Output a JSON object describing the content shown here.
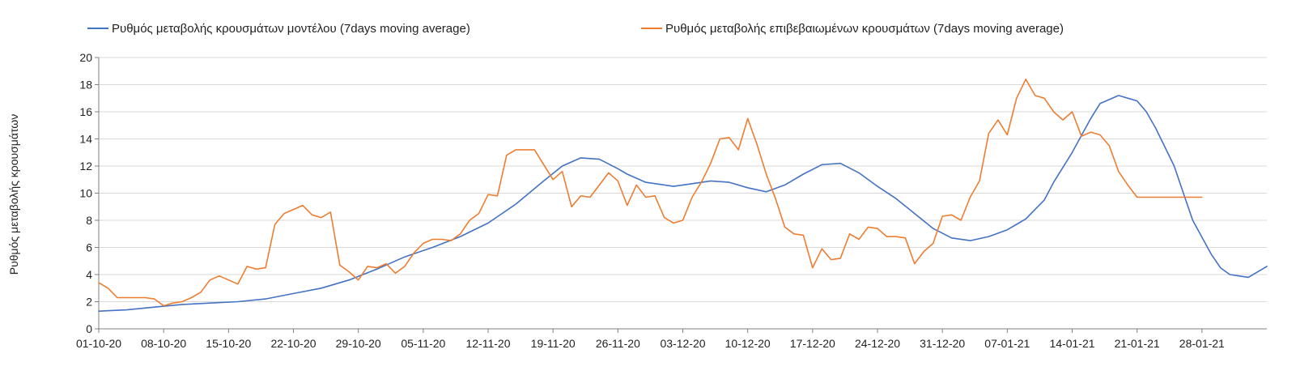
{
  "chart_data": {
    "type": "line",
    "title": "",
    "xlabel": "",
    "ylabel": "Ρυθμός μεταβολής κρουσμάτων",
    "ylim": [
      0,
      20
    ],
    "yticks": [
      0,
      2,
      4,
      6,
      8,
      10,
      12,
      14,
      16,
      18,
      20
    ],
    "grid": "horizontal",
    "legend_position": "top",
    "x_start_day": 0,
    "x_end_day": 126,
    "x_tick_labels": [
      "01-10-20",
      "08-10-20",
      "15-10-20",
      "22-10-20",
      "29-10-20",
      "05-11-20",
      "12-11-20",
      "19-11-20",
      "26-11-20",
      "03-12-20",
      "10-12-20",
      "17-12-20",
      "24-12-20",
      "31-12-20",
      "07-01-21",
      "14-01-21",
      "21-01-21",
      "28-01-21"
    ],
    "series": [
      {
        "name": "Ρυθμός μεταβολής κρουσμάτων μοντέλου (7days moving average)",
        "color": "#4472c4",
        "x": [
          0,
          3,
          6,
          9,
          12,
          15,
          18,
          21,
          24,
          27,
          30,
          33,
          36,
          39,
          42,
          45,
          48,
          50,
          52,
          54,
          56,
          57,
          59,
          62,
          64,
          66,
          68,
          70,
          72,
          74,
          76,
          78,
          80,
          82,
          84,
          86,
          88,
          90,
          92,
          94,
          96,
          98,
          99,
          100,
          102,
          103,
          105,
          107,
          108,
          110,
          112,
          113,
          114,
          116,
          117,
          118,
          120,
          121,
          122,
          124,
          126
        ],
        "values": [
          1.3,
          1.4,
          1.6,
          1.8,
          1.9,
          2.0,
          2.2,
          2.6,
          3.0,
          3.6,
          4.4,
          5.3,
          6.0,
          6.8,
          7.8,
          9.2,
          10.9,
          12.0,
          12.6,
          12.5,
          11.8,
          11.4,
          10.8,
          10.5,
          10.7,
          10.9,
          10.8,
          10.4,
          10.1,
          10.6,
          11.4,
          12.1,
          12.2,
          11.5,
          10.5,
          9.6,
          8.5,
          7.4,
          6.7,
          6.5,
          6.8,
          7.3,
          7.7,
          8.1,
          9.5,
          10.8,
          13.0,
          15.5,
          16.6,
          17.2,
          16.8,
          16.0,
          14.8,
          12.0,
          10.0,
          8.0,
          5.5,
          4.5,
          4.0,
          3.8,
          4.6
        ]
      },
      {
        "name": "Ρυθμός μεταβολής επιβεβαιωμένων κρουσμάτων (7days moving average)",
        "color": "#ed7d31",
        "x": [
          0,
          1,
          2,
          3,
          4,
          5,
          6,
          7,
          8,
          9,
          10,
          11,
          12,
          13,
          14,
          15,
          16,
          17,
          18,
          19,
          20,
          21,
          22,
          23,
          24,
          25,
          26,
          27,
          28,
          29,
          30,
          31,
          32,
          33,
          34,
          35,
          36,
          37,
          38,
          39,
          40,
          41,
          42,
          43,
          44,
          45,
          46,
          47,
          48,
          49,
          50,
          51,
          52,
          53,
          54,
          55,
          56,
          57,
          58,
          59,
          60,
          61,
          62,
          63,
          64,
          65,
          66,
          67,
          68,
          69,
          70,
          71,
          72,
          73,
          74,
          75,
          76,
          77,
          78,
          79,
          80,
          81,
          82,
          83,
          84,
          85,
          86,
          87,
          88,
          89,
          90,
          91,
          92,
          93,
          94,
          95,
          96,
          97,
          98,
          99,
          100,
          101,
          102,
          103,
          104,
          105,
          106,
          107,
          108,
          109,
          110,
          111,
          112,
          113,
          114,
          115,
          116,
          117,
          118,
          119
        ],
        "values": [
          3.4,
          3.0,
          2.3,
          2.3,
          2.3,
          2.3,
          2.2,
          1.7,
          1.9,
          2.0,
          2.3,
          2.7,
          3.6,
          3.9,
          3.6,
          3.3,
          4.6,
          4.4,
          4.5,
          7.7,
          8.5,
          8.8,
          9.1,
          8.4,
          8.2,
          8.6,
          4.7,
          4.2,
          3.6,
          4.6,
          4.5,
          4.8,
          4.1,
          4.6,
          5.6,
          6.3,
          6.6,
          6.6,
          6.5,
          7.0,
          8.0,
          8.5,
          9.9,
          9.8,
          12.8,
          13.2,
          13.2,
          13.2,
          12.1,
          11.0,
          11.6,
          9.0,
          9.8,
          9.7,
          10.6,
          11.5,
          10.9,
          9.1,
          10.6,
          9.7,
          9.8,
          8.2,
          7.8,
          8.0,
          9.7,
          10.8,
          12.2,
          14.0,
          14.1,
          13.2,
          15.5,
          13.6,
          11.4,
          9.6,
          7.5,
          7.0,
          6.9,
          4.5,
          5.9,
          5.1,
          5.2,
          7.0,
          6.6,
          7.5,
          7.4,
          6.8,
          6.8,
          6.7,
          4.8,
          5.7,
          6.3,
          8.3,
          8.4,
          8.0,
          9.7,
          10.9,
          14.4,
          15.4,
          14.3,
          17.0,
          18.4,
          17.2,
          17.0,
          16.0,
          15.4,
          16.0,
          14.2,
          14.5,
          14.3,
          13.5,
          11.6,
          10.6,
          9.7,
          9.7,
          9.7,
          9.7,
          9.7,
          9.7,
          9.7,
          9.7
        ]
      }
    ]
  }
}
